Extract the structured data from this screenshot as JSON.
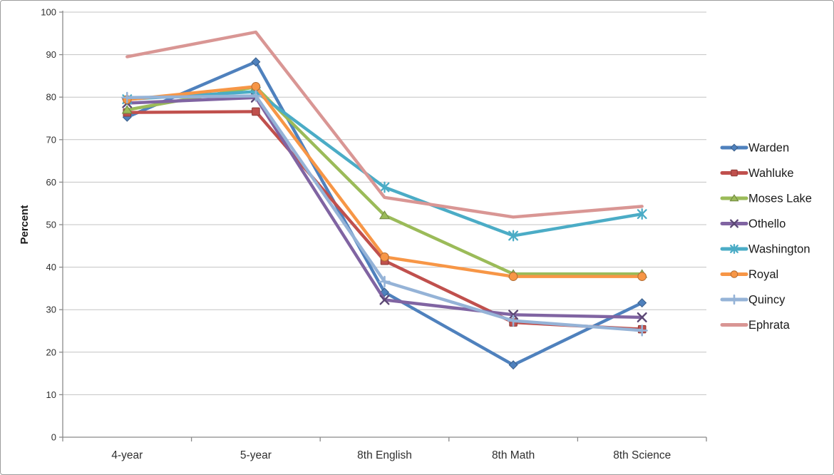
{
  "chart": {
    "ylabel": "Percent",
    "colors": {
      "background": "#ffffff",
      "frame_border": "#9c9c9c",
      "gridline": "#c3c3c3",
      "axis": "#8a8a8a",
      "tick_label": "#2f2f2f",
      "legend_text": "#1a1a1a"
    }
  },
  "chart_data": {
    "type": "line",
    "title": "",
    "xlabel": "",
    "ylabel": "Percent",
    "ylim": [
      0,
      100
    ],
    "ytick_step": 10,
    "grid": true,
    "legend_position": "right",
    "categories": [
      "4-year",
      "5-year",
      "8th English",
      "8th Math",
      "8th Science"
    ],
    "series": [
      {
        "name": "Warden",
        "color": "#4F81BD",
        "marker": "diamond",
        "values": [
          75.3,
          88.3,
          34.1,
          17.0,
          31.6
        ]
      },
      {
        "name": "Wahluke",
        "color": "#C0504D",
        "marker": "square",
        "values": [
          76.4,
          76.6,
          41.5,
          27.0,
          25.4
        ]
      },
      {
        "name": "Moses Lake",
        "color": "#9BBB59",
        "marker": "triangle",
        "values": [
          77.0,
          82.4,
          52.2,
          38.4,
          38.4
        ]
      },
      {
        "name": "Othello",
        "color": "#8064A2",
        "marker": "x",
        "values": [
          78.6,
          79.9,
          32.3,
          28.8,
          28.2
        ]
      },
      {
        "name": "Washington",
        "color": "#4BACC6",
        "marker": "asterisk",
        "values": [
          79.5,
          81.3,
          58.8,
          47.4,
          52.5
        ]
      },
      {
        "name": "Royal",
        "color": "#F79646",
        "marker": "circle",
        "values": [
          79.4,
          82.5,
          42.4,
          37.8,
          37.8
        ]
      },
      {
        "name": "Quincy",
        "color": "#95B3D7",
        "marker": "plus",
        "values": [
          79.9,
          80.3,
          36.6,
          27.4,
          25.1
        ]
      },
      {
        "name": "Ephrata",
        "color": "#D99694",
        "marker": "none",
        "values": [
          89.5,
          95.3,
          56.4,
          51.8,
          54.3
        ]
      }
    ]
  }
}
